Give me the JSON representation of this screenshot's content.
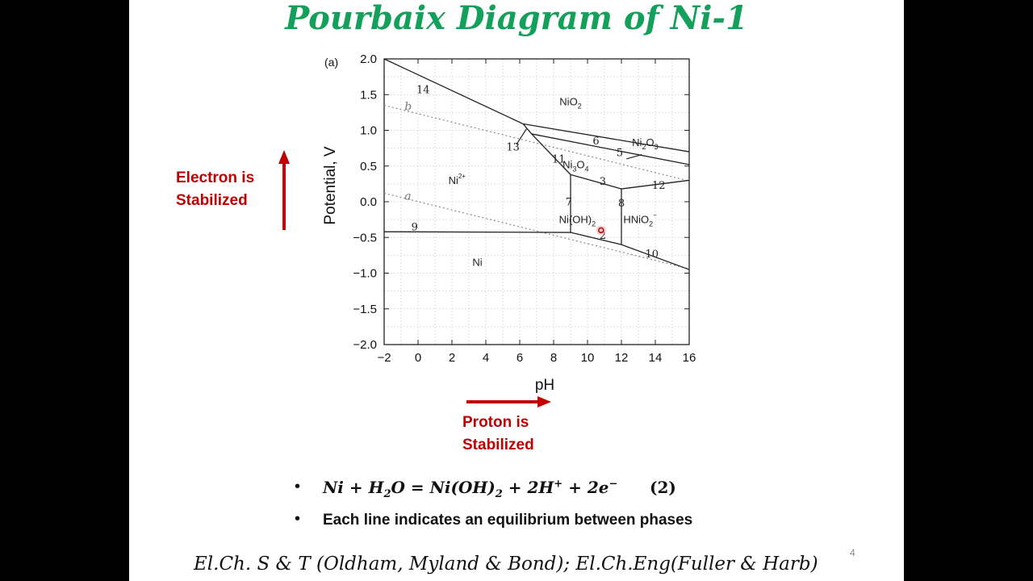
{
  "slide": {
    "title": "Pourbaix Diagram of Ni-1",
    "left_label": [
      "Electron is",
      "Stabilized"
    ],
    "bottom_label": [
      "Proton is",
      "Stabilized"
    ],
    "bullets": {
      "equation_parts": [
        "Ni + H",
        "2",
        "O = Ni(OH)",
        "2",
        " + 2H",
        "+",
        " + 2e",
        "−"
      ],
      "equation_number": "(2)",
      "text": "Each line indicates an equilibrium between phases"
    },
    "reference": "El.Ch. S & T (Oldham, Myland & Bond); El.Ch.Eng(Fuller & Harb)",
    "page_number": "4",
    "colors": {
      "title": "#12a05a",
      "accent": "#c00000"
    }
  },
  "diagram": {
    "panel_label": "(a)",
    "xlabel": "pH",
    "ylabel": "Potential, V",
    "xlim": [
      -2,
      16
    ],
    "ylim": [
      -2.0,
      2.0
    ],
    "x_ticks": [
      "−2",
      "0",
      "2",
      "4",
      "6",
      "8",
      "10",
      "12",
      "14",
      "16"
    ],
    "y_ticks": [
      "2.0",
      "1.5",
      "1.0",
      "0.5",
      "0.0",
      "−0.5",
      "−1.0",
      "−1.5",
      "−2.0"
    ],
    "grid": true,
    "phases": [
      {
        "label": "NiO",
        "sub": "2",
        "sup": "",
        "pH": 9.0,
        "E": 1.35
      },
      {
        "label": "Ni",
        "sub": "2",
        "sup": "",
        "label2": "O",
        "sub2": "3",
        "pH": 13.4,
        "E": 0.78
      },
      {
        "label": "Ni",
        "sub": "3",
        "sup": "",
        "label2": "O",
        "sub2": "4",
        "pH": 9.3,
        "E": 0.47
      },
      {
        "label": "Ni",
        "sub": "",
        "sup": "2+",
        "pH": 2.3,
        "E": 0.25
      },
      {
        "label": "Ni(OH)",
        "sub": "2",
        "sup": "",
        "pH": 9.4,
        "E": -0.3
      },
      {
        "label": "HNiO",
        "sub": "2",
        "sup": "−",
        "pH": 13.1,
        "E": -0.3
      },
      {
        "label": "Ni",
        "sub": "",
        "sup": "",
        "pH": 3.5,
        "E": -0.9
      }
    ],
    "water_lines": [
      {
        "name": "b",
        "points": [
          [
            -2,
            1.35
          ],
          [
            16,
            0.29
          ]
        ],
        "label_at": [
          -0.8,
          1.28
        ]
      },
      {
        "name": "a",
        "points": [
          [
            -2,
            0.12
          ],
          [
            16,
            -0.94
          ]
        ],
        "label_at": [
          -0.8,
          0.03
        ]
      }
    ],
    "boundary_lines": [
      {
        "id": "14",
        "points": [
          [
            -2,
            2.0
          ],
          [
            6.2,
            1.09
          ]
        ]
      },
      {
        "id": "6",
        "points": [
          [
            6.2,
            1.09
          ],
          [
            16,
            0.7
          ]
        ]
      },
      {
        "id": "5",
        "points": [
          [
            6.7,
            0.95
          ],
          [
            16,
            0.52
          ]
        ]
      },
      {
        "id": "13",
        "points": [
          [
            6.2,
            1.09
          ],
          [
            6.7,
            0.95
          ]
        ]
      },
      {
        "id": "11",
        "points": [
          [
            6.7,
            0.95
          ],
          [
            9.0,
            0.38
          ]
        ]
      },
      {
        "id": "7",
        "points": [
          [
            9.0,
            0.38
          ],
          [
            9.0,
            -0.43
          ]
        ]
      },
      {
        "id": "3",
        "points": [
          [
            9.0,
            0.38
          ],
          [
            12.0,
            0.18
          ]
        ]
      },
      {
        "id": "12",
        "points": [
          [
            12.0,
            0.18
          ],
          [
            16,
            0.3
          ]
        ]
      },
      {
        "id": "8",
        "points": [
          [
            12.0,
            0.18
          ],
          [
            12.0,
            -0.6
          ]
        ]
      },
      {
        "id": "9",
        "points": [
          [
            -2,
            -0.42
          ],
          [
            9.0,
            -0.43
          ]
        ]
      },
      {
        "id": "2",
        "points": [
          [
            9.0,
            -0.43
          ],
          [
            12.0,
            -0.6
          ]
        ]
      },
      {
        "id": "10",
        "points": [
          [
            12.0,
            -0.6
          ],
          [
            16,
            -0.95
          ]
        ]
      }
    ],
    "line_labels": [
      {
        "text": "14",
        "pH": 0.3,
        "E": 1.52
      },
      {
        "text": "13",
        "pH": 5.6,
        "E": 0.72
      },
      {
        "text": "6",
        "pH": 10.5,
        "E": 0.8
      },
      {
        "text": "5",
        "pH": 11.9,
        "E": 0.64
      },
      {
        "text": "11",
        "pH": 8.3,
        "E": 0.55
      },
      {
        "text": "3",
        "pH": 10.9,
        "E": 0.24
      },
      {
        "text": "12",
        "pH": 14.2,
        "E": 0.18
      },
      {
        "text": "7",
        "pH": 8.9,
        "E": -0.05
      },
      {
        "text": "8",
        "pH": 12.0,
        "E": -0.07
      },
      {
        "text": "9",
        "pH": -0.2,
        "E": -0.4
      },
      {
        "text": "2",
        "pH": 10.9,
        "E": -0.52
      },
      {
        "text": "10",
        "pH": 13.8,
        "E": -0.78
      }
    ]
  }
}
